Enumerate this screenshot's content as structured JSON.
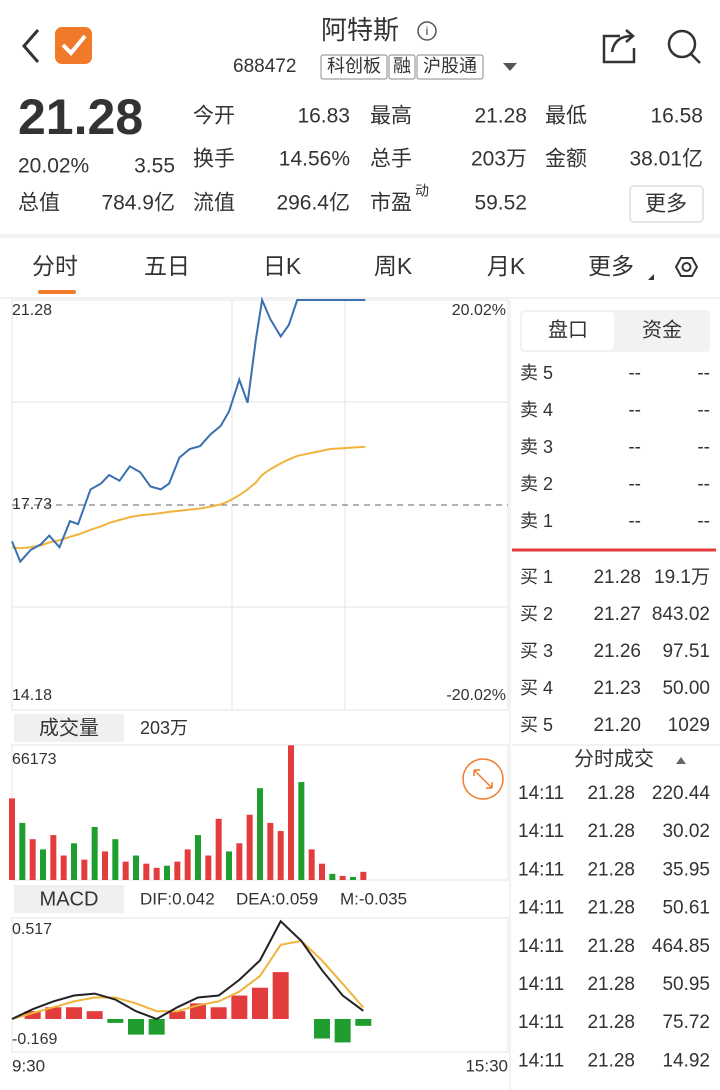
{
  "header": {
    "title": "阿特斯",
    "code": "688472",
    "tags": [
      "科创板",
      "融",
      "沪股通"
    ]
  },
  "quote": {
    "price": "21.28",
    "change_pct": "20.02%",
    "change": "3.55",
    "fields": [
      {
        "label": "今开",
        "value": "16.83",
        "color": "#1f9e2f"
      },
      {
        "label": "最高",
        "value": "21.28",
        "color": "#e23c3c"
      },
      {
        "label": "最低",
        "value": "16.58",
        "color": "#1f9e2f"
      },
      {
        "label": "换手",
        "value": "14.56%"
      },
      {
        "label": "总手",
        "value": "203万"
      },
      {
        "label": "金额",
        "value": "38.01亿"
      },
      {
        "label": "总值",
        "value": "784.9亿"
      },
      {
        "label": "流值",
        "value": "296.4亿"
      },
      {
        "label": "市盈",
        "sup": "动",
        "value": "59.52"
      }
    ],
    "more": "更多"
  },
  "tabs": [
    "分时",
    "五日",
    "日K",
    "周K",
    "月K",
    "更多"
  ],
  "intraday": {
    "xlim": [
      0,
      240
    ],
    "ylim": [
      14.18,
      21.28
    ],
    "yticks": [
      21.28,
      17.73,
      14.18
    ],
    "pct_labels": [
      "20.02%",
      "-20.02%"
    ],
    "xticks": [
      {
        "value": 0,
        "label": "9:30"
      },
      {
        "value": 240,
        "label": "15:30"
      }
    ],
    "x": [
      0,
      4,
      9,
      14,
      18,
      23,
      28,
      32,
      38,
      43,
      47,
      52,
      57,
      62,
      67,
      72,
      76,
      81,
      86,
      91,
      96,
      101,
      105,
      110,
      114,
      118,
      121,
      125,
      130,
      134,
      138,
      154,
      171
    ],
    "price": {
      "color": "#3a6fb0",
      "values": [
        17.1,
        16.75,
        16.95,
        17.05,
        17.2,
        17.0,
        17.45,
        17.4,
        18.0,
        18.1,
        18.25,
        18.15,
        18.4,
        18.3,
        18.05,
        18.0,
        18.1,
        18.55,
        18.7,
        18.75,
        18.95,
        19.1,
        19.35,
        19.9,
        19.5,
        20.6,
        21.28,
        20.95,
        20.65,
        20.85,
        21.28,
        21.28,
        21.28
      ]
    },
    "avg": {
      "color": "#f0b43c",
      "values": [
        17.0,
        16.98,
        17.0,
        17.03,
        17.08,
        17.12,
        17.18,
        17.22,
        17.3,
        17.36,
        17.42,
        17.47,
        17.52,
        17.55,
        17.57,
        17.59,
        17.61,
        17.63,
        17.65,
        17.67,
        17.7,
        17.74,
        17.8,
        17.9,
        18.0,
        18.12,
        18.25,
        18.35,
        18.45,
        18.52,
        18.58,
        18.7,
        18.74
      ]
    }
  },
  "volume": {
    "label": "成交量",
    "total": "203万",
    "ylim": [
      0,
      66173
    ],
    "yticks": [
      66173
    ],
    "x": [
      0,
      5,
      10,
      15,
      20,
      25,
      30,
      35,
      40,
      45,
      50,
      55,
      60,
      65,
      70,
      75,
      80,
      85,
      90,
      95,
      100,
      105,
      110,
      115,
      120,
      125,
      130,
      135,
      140,
      145,
      150,
      155,
      160,
      165,
      170
    ],
    "values": [
      40000,
      28000,
      20000,
      15000,
      22000,
      12000,
      18000,
      10000,
      26000,
      14000,
      20000,
      9000,
      12000,
      8000,
      6000,
      7000,
      9000,
      15000,
      22000,
      12000,
      30000,
      14000,
      18000,
      32000,
      45000,
      28000,
      24000,
      66000,
      48000,
      15000,
      8000,
      3000,
      2000,
      1500,
      4000
    ],
    "up": [
      true,
      false,
      true,
      false,
      true,
      true,
      false,
      true,
      false,
      true,
      false,
      true,
      false,
      true,
      true,
      false,
      true,
      true,
      false,
      true,
      true,
      false,
      true,
      true,
      false,
      true,
      true,
      true,
      false,
      true,
      true,
      false,
      true,
      false,
      true
    ],
    "up_color": "#e23c3c",
    "down_color": "#1f9e2f"
  },
  "macd": {
    "label": "MACD",
    "legend": [
      {
        "text": "DIF:0.042",
        "color": "#222222"
      },
      {
        "text": "DEA:0.059",
        "color": "#f0b43c"
      },
      {
        "text": "M:-0.035",
        "color": "#c040c0"
      }
    ],
    "ylim": [
      -0.169,
      0.517
    ],
    "yticks": [
      0.517,
      -0.169
    ],
    "x": [
      0,
      10,
      20,
      30,
      40,
      50,
      60,
      70,
      80,
      90,
      100,
      110,
      120,
      130,
      140,
      150,
      160,
      170
    ],
    "dif": [
      0.0,
      0.05,
      0.09,
      0.12,
      0.13,
      0.1,
      0.04,
      0.0,
      0.06,
      0.11,
      0.12,
      0.2,
      0.3,
      0.5,
      0.4,
      0.25,
      0.12,
      0.042
    ],
    "dea": [
      0.0,
      0.03,
      0.06,
      0.09,
      0.11,
      0.11,
      0.08,
      0.04,
      0.04,
      0.07,
      0.09,
      0.14,
      0.22,
      0.38,
      0.4,
      0.3,
      0.18,
      0.059
    ],
    "m": [
      0,
      0.04,
      0.06,
      0.06,
      0.04,
      -0.02,
      -0.08,
      -0.08,
      0.04,
      0.08,
      0.06,
      0.12,
      0.16,
      0.24,
      0.0,
      -0.1,
      -0.12,
      -0.035
    ]
  },
  "order_book": {
    "tabs": [
      "盘口",
      "资金"
    ],
    "sell": [
      {
        "label": "卖 5",
        "price": "--",
        "volume": "--"
      },
      {
        "label": "卖 4",
        "price": "--",
        "volume": "--"
      },
      {
        "label": "卖 3",
        "price": "--",
        "volume": "--"
      },
      {
        "label": "卖 2",
        "price": "--",
        "volume": "--"
      },
      {
        "label": "卖 1",
        "price": "--",
        "volume": "--"
      }
    ],
    "buy": [
      {
        "label": "买 1",
        "price": "21.28",
        "volume": "19.1万"
      },
      {
        "label": "买 2",
        "price": "21.27",
        "volume": "843.02"
      },
      {
        "label": "买 3",
        "price": "21.26",
        "volume": "97.51"
      },
      {
        "label": "买 4",
        "price": "21.23",
        "volume": "50.00"
      },
      {
        "label": "买 5",
        "price": "21.20",
        "volume": "1029"
      }
    ]
  },
  "trades": {
    "title": "分时成交",
    "rows": [
      [
        "14:11",
        "21.28",
        "220.44"
      ],
      [
        "14:11",
        "21.28",
        "30.02"
      ],
      [
        "14:11",
        "21.28",
        "35.95"
      ],
      [
        "14:11",
        "21.28",
        "50.61"
      ],
      [
        "14:11",
        "21.28",
        "464.85"
      ],
      [
        "14:11",
        "21.28",
        "50.95"
      ],
      [
        "14:11",
        "21.28",
        "75.72"
      ],
      [
        "14:11",
        "21.28",
        "14.92"
      ]
    ]
  }
}
